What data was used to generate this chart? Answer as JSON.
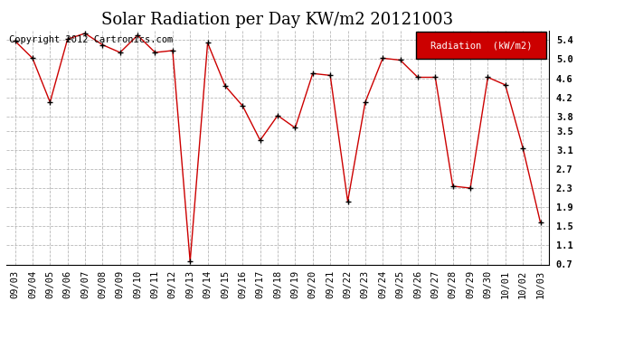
{
  "title": "Solar Radiation per Day KW/m2 20121003",
  "copyright_text": "Copyright 2012 Cartronics.com",
  "legend_label": "Radiation  (kW/m2)",
  "dates": [
    "09/03",
    "09/04",
    "09/05",
    "09/06",
    "09/07",
    "09/08",
    "09/09",
    "09/10",
    "09/11",
    "09/12",
    "09/13",
    "09/14",
    "09/15",
    "09/16",
    "09/17",
    "09/18",
    "09/19",
    "09/20",
    "09/21",
    "09/22",
    "09/23",
    "09/24",
    "09/25",
    "09/26",
    "09/27",
    "09/28",
    "09/29",
    "09/30",
    "10/01",
    "10/02",
    "10/03"
  ],
  "values": [
    5.38,
    5.02,
    4.1,
    5.42,
    5.54,
    5.3,
    5.14,
    5.5,
    5.14,
    5.18,
    0.76,
    5.34,
    4.44,
    4.02,
    3.3,
    3.82,
    3.56,
    4.7,
    4.66,
    2.02,
    4.1,
    5.02,
    4.98,
    4.62,
    4.62,
    2.34,
    2.3,
    4.62,
    4.46,
    3.14,
    1.58
  ],
  "line_color": "#cc0000",
  "marker_color": "#000000",
  "bg_color": "#ffffff",
  "plot_bg_color": "#ffffff",
  "grid_color": "#b0b0b0",
  "ylim_min": 0.7,
  "ylim_max": 5.6,
  "yticks": [
    0.7,
    1.1,
    1.5,
    1.9,
    2.3,
    2.7,
    3.1,
    3.5,
    3.8,
    4.2,
    4.6,
    5.0,
    5.4
  ],
  "legend_bg": "#cc0000",
  "legend_text_color": "#ffffff",
  "title_fontsize": 13,
  "copyright_fontsize": 7.5,
  "tick_fontsize": 7.5,
  "figwidth": 6.9,
  "figheight": 3.75,
  "dpi": 100
}
